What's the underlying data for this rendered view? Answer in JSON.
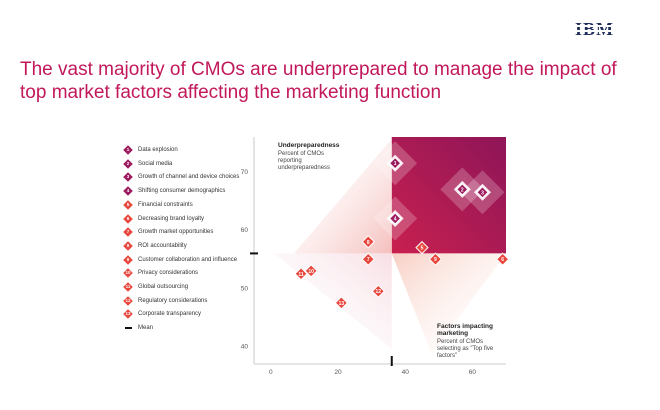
{
  "brand": {
    "logo_text": "IBM"
  },
  "title": "The vast majority of CMOs are underprepared to manage the impact of top market factors affecting the marketing function",
  "legend": {
    "items": [
      {
        "num": "1",
        "label": "Data explosion",
        "color": "#9c1a5e"
      },
      {
        "num": "2",
        "label": "Social media",
        "color": "#9c1a5e"
      },
      {
        "num": "3",
        "label": "Growth of channel and device choices",
        "color": "#9c1a5e"
      },
      {
        "num": "4",
        "label": "Shifting consumer demographics",
        "color": "#9c1a5e"
      },
      {
        "num": "5",
        "label": "Financial constraints",
        "color": "#e8473e"
      },
      {
        "num": "6",
        "label": "Decreasing brand loyalty",
        "color": "#e8473e"
      },
      {
        "num": "7",
        "label": "Growth market opportunities",
        "color": "#e8473e"
      },
      {
        "num": "8",
        "label": "ROI accountability",
        "color": "#e8473e"
      },
      {
        "num": "9",
        "label": "Customer collaboration and influence",
        "color": "#e8473e"
      },
      {
        "num": "10",
        "label": "Privacy considerations",
        "color": "#e8473e"
      },
      {
        "num": "11",
        "label": "Global outsourcing",
        "color": "#e8473e"
      },
      {
        "num": "12",
        "label": "Regulatory considerations",
        "color": "#e8473e"
      },
      {
        "num": "13",
        "label": "Corporate transparency",
        "color": "#e8473e"
      }
    ],
    "mean_label": "Mean"
  },
  "chart_data": {
    "type": "scatter",
    "y_axis_title": "Underpreparedness",
    "y_axis_subtitle": "Percent of CMOs reporting underpreparedness",
    "x_axis_title": "Factors impacting marketing",
    "x_axis_subtitle": "Percent of CMOs selecting as \"Top five factors\"",
    "xlim": [
      -5,
      70
    ],
    "ylim": [
      37,
      76
    ],
    "x_ticks": [
      "0",
      "20",
      "40",
      "60"
    ],
    "x_tick_values": [
      0,
      20,
      40,
      60
    ],
    "y_ticks": [
      "40",
      "50",
      "60",
      "70"
    ],
    "y_tick_values": [
      40,
      50,
      60,
      70
    ],
    "mean": {
      "x": 36,
      "y": 56
    },
    "colors": {
      "top_factor": "#9c1a5e",
      "other_factor": "#e8473e",
      "quadrant_light": "#f6d2c8",
      "quadrant_dark": "#a0185e"
    },
    "points": [
      {
        "id": "1",
        "x": 37,
        "y": 71.5,
        "highlight": true
      },
      {
        "id": "2",
        "x": 57,
        "y": 67,
        "highlight": true
      },
      {
        "id": "3",
        "x": 63,
        "y": 66.5,
        "highlight": true
      },
      {
        "id": "4",
        "x": 37,
        "y": 62,
        "highlight": true
      },
      {
        "id": "5",
        "x": 45,
        "y": 57,
        "highlight": false
      },
      {
        "id": "6",
        "x": 69,
        "y": 55,
        "highlight": false
      },
      {
        "id": "7",
        "x": 29,
        "y": 55,
        "highlight": false
      },
      {
        "id": "8",
        "x": 29,
        "y": 58,
        "highlight": false
      },
      {
        "id": "9",
        "x": 49,
        "y": 55,
        "highlight": false
      },
      {
        "id": "10",
        "x": 12,
        "y": 53,
        "highlight": false
      },
      {
        "id": "11",
        "x": 9,
        "y": 52.5,
        "highlight": false
      },
      {
        "id": "12",
        "x": 32,
        "y": 49.5,
        "highlight": false
      },
      {
        "id": "13",
        "x": 21,
        "y": 47.5,
        "highlight": false
      }
    ]
  }
}
